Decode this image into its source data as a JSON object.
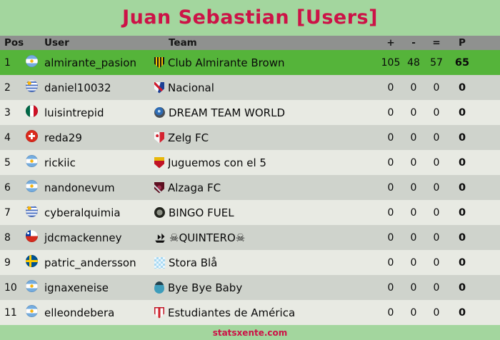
{
  "title": "Juan Sebastian [Users]",
  "colors": {
    "accent_crimson": "#cc1347",
    "page_green": "#a3d69e",
    "highlight_row_green": "#55b43a",
    "header_gray": "#8f918f",
    "row_dark": "#cfd3cc",
    "row_light": "#e8eae3"
  },
  "table": {
    "headers": {
      "pos": "Pos",
      "user": "User",
      "team": "Team",
      "plus": "+",
      "minus": "-",
      "equals": "=",
      "points": "P"
    },
    "rows": [
      {
        "pos": "1",
        "flag": "argentina",
        "user": "almirante_pasion",
        "badge": "almirante-brown",
        "team": "Club Almirante Brown",
        "plus": "105",
        "minus": "48",
        "equals": "57",
        "points": "65",
        "highlight": true
      },
      {
        "pos": "2",
        "flag": "uruguay",
        "user": "daniel10032",
        "badge": "nacional",
        "team": "Nacional",
        "plus": "0",
        "minus": "0",
        "equals": "0",
        "points": "0"
      },
      {
        "pos": "3",
        "flag": "mexico",
        "user": "luisintrepid",
        "badge": "dream-team-world",
        "team": "DREAM TEAM WORLD",
        "plus": "0",
        "minus": "0",
        "equals": "0",
        "points": "0"
      },
      {
        "pos": "4",
        "flag": "switzerland",
        "user": "reda29",
        "badge": "zelg",
        "team": "Zelg FC",
        "plus": "0",
        "minus": "0",
        "equals": "0",
        "points": "0"
      },
      {
        "pos": "5",
        "flag": "argentina",
        "user": "rickiic",
        "badge": "juguemos",
        "team": "Juguemos con el 5",
        "plus": "0",
        "minus": "0",
        "equals": "0",
        "points": "0"
      },
      {
        "pos": "6",
        "flag": "argentina",
        "user": "nandonevum",
        "badge": "alzaga",
        "team": "Alzaga FC",
        "plus": "0",
        "minus": "0",
        "equals": "0",
        "points": "0"
      },
      {
        "pos": "7",
        "flag": "uruguay",
        "user": "cyberalquimia",
        "badge": "bingo-fuel",
        "team": "BINGO FUEL",
        "plus": "0",
        "minus": "0",
        "equals": "0",
        "points": "0"
      },
      {
        "pos": "8",
        "flag": "chile",
        "user": "jdcmackenney",
        "badge": "quintero-ship",
        "team": "☠QUINTERO☠",
        "plus": "0",
        "minus": "0",
        "equals": "0",
        "points": "0"
      },
      {
        "pos": "9",
        "flag": "sweden",
        "user": "patric_andersson",
        "badge": "stora-bla",
        "team": "Stora Blå",
        "plus": "0",
        "minus": "0",
        "equals": "0",
        "points": "0"
      },
      {
        "pos": "10",
        "flag": "argentina",
        "user": "ignaxeneise",
        "badge": "bye-bye-baby",
        "team": "Bye Bye Baby",
        "plus": "0",
        "minus": "0",
        "equals": "0",
        "points": "0"
      },
      {
        "pos": "11",
        "flag": "argentina",
        "user": "elleondebera",
        "badge": "estudiantes",
        "team": "Estudiantes de América",
        "plus": "0",
        "minus": "0",
        "equals": "0",
        "points": "0"
      }
    ]
  },
  "footer": {
    "site": "statsxente.com"
  }
}
